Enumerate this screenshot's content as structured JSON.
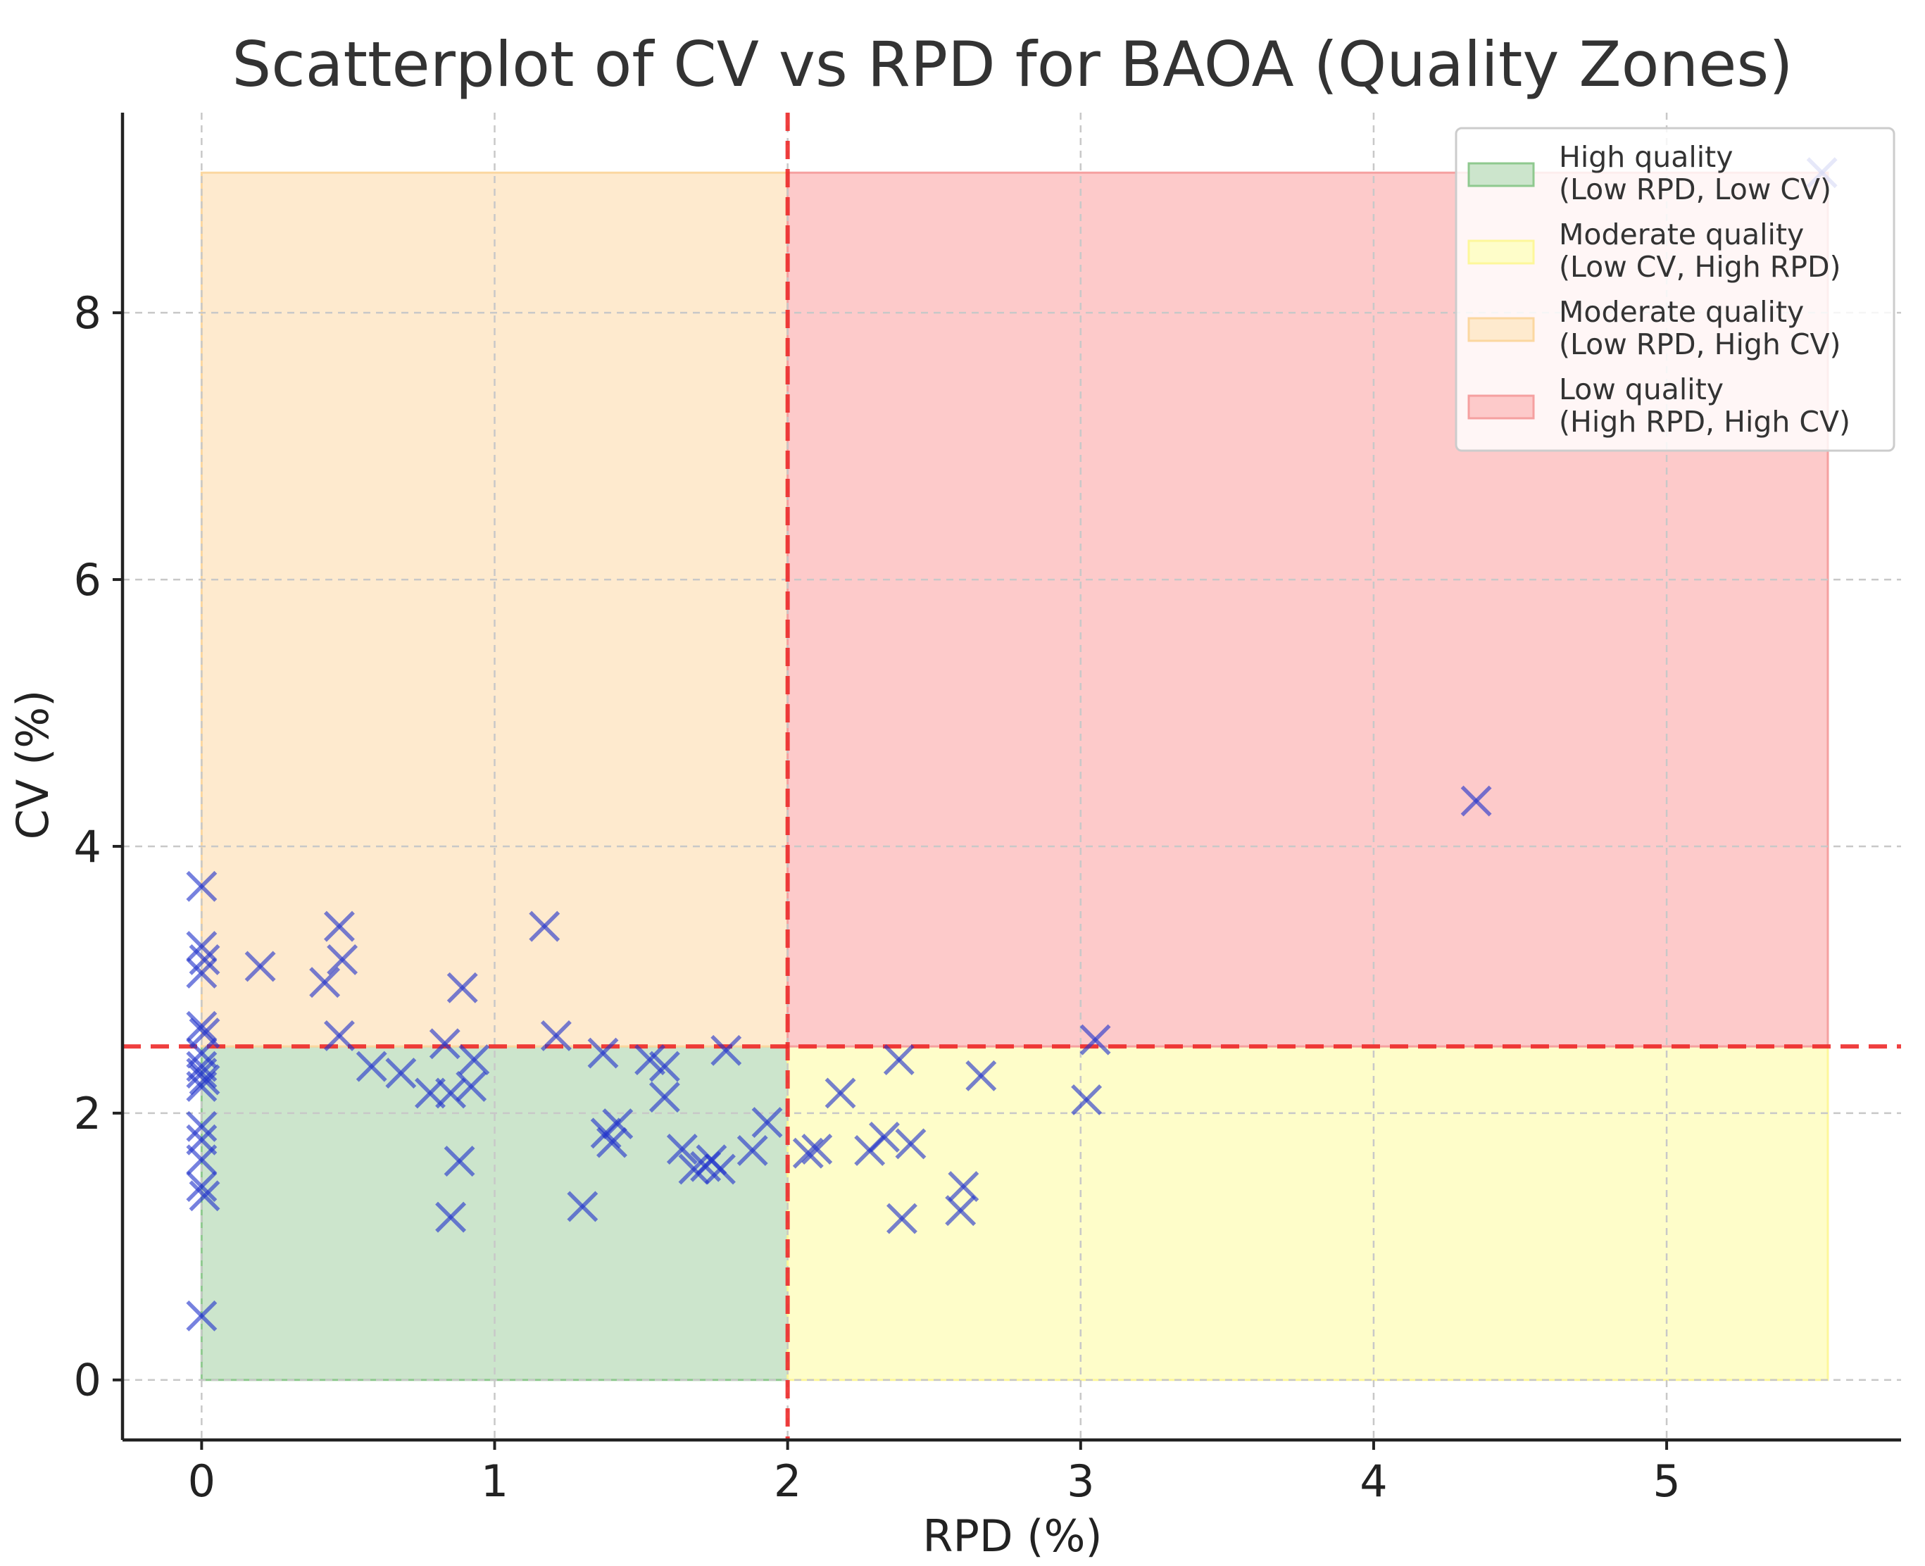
{
  "chart_data": {
    "type": "scatter",
    "title": "Scatterplot of CV vs RPD for BAOA (Quality Zones)",
    "xlabel": "RPD (%)",
    "ylabel": "CV (%)",
    "xlim": [
      -0.27,
      5.8
    ],
    "ylim": [
      -0.45,
      9.5
    ],
    "xticks": [
      0,
      1,
      2,
      3,
      4,
      5
    ],
    "yticks": [
      0,
      2,
      4,
      6,
      8
    ],
    "grid": true,
    "marker": "x",
    "marker_color": "#2233cc",
    "thresholds": {
      "rpd": 2,
      "cv": 2.5,
      "color": "#ee2b2b"
    },
    "zone_extent": {
      "x_max": 5.55,
      "y_max": 9.05
    },
    "zones": [
      {
        "name": "high",
        "label_line1": "High quality",
        "label_line2": "(Low RPD, Low CV)",
        "color": "#cce5cc",
        "border": "#8fc98f",
        "x0": 0,
        "x1": 2,
        "y0": 0,
        "y1": 2.5
      },
      {
        "name": "moderate-cv",
        "label_line1": "Moderate quality",
        "label_line2": "(Low CV, High RPD)",
        "color": "#fefdc9",
        "border": "#fdf79a",
        "x0": 2,
        "x1": 5.55,
        "y0": 0,
        "y1": 2.5
      },
      {
        "name": "moderate-rpd",
        "label_line1": "Moderate quality",
        "label_line2": "(Low RPD, High CV)",
        "color": "#feeace",
        "border": "#fbd7a0",
        "x0": 0,
        "x1": 2,
        "y0": 2.5,
        "y1": 9.05
      },
      {
        "name": "low",
        "label_line1": "Low quality",
        "label_line2": "(High RPD, High CV)",
        "color": "#fdcaca",
        "border": "#f5a0a0",
        "x0": 2,
        "x1": 5.55,
        "y0": 2.5,
        "y1": 9.05
      }
    ],
    "legend_position": "top-right",
    "points": [
      {
        "x": 0,
        "y": 3.7
      },
      {
        "x": 0,
        "y": 3.25
      },
      {
        "x": 0.01,
        "y": 3.15
      },
      {
        "x": 0,
        "y": 3.05
      },
      {
        "x": 0,
        "y": 2.65
      },
      {
        "x": 0.01,
        "y": 2.6
      },
      {
        "x": 0,
        "y": 2.45
      },
      {
        "x": 0,
        "y": 2.35
      },
      {
        "x": 0,
        "y": 2.3
      },
      {
        "x": 0.01,
        "y": 2.25
      },
      {
        "x": 0,
        "y": 2.2
      },
      {
        "x": 0,
        "y": 1.9
      },
      {
        "x": 0,
        "y": 1.8
      },
      {
        "x": 0,
        "y": 1.65
      },
      {
        "x": 0,
        "y": 1.45
      },
      {
        "x": 0.01,
        "y": 1.38
      },
      {
        "x": 0,
        "y": 0.48
      },
      {
        "x": 0.2,
        "y": 3.1
      },
      {
        "x": 0.42,
        "y": 2.98
      },
      {
        "x": 0.47,
        "y": 3.4
      },
      {
        "x": 0.48,
        "y": 3.15
      },
      {
        "x": 0.47,
        "y": 2.58
      },
      {
        "x": 0.58,
        "y": 2.35
      },
      {
        "x": 0.68,
        "y": 2.3
      },
      {
        "x": 0.78,
        "y": 2.15
      },
      {
        "x": 0.83,
        "y": 2.52
      },
      {
        "x": 0.85,
        "y": 2.15
      },
      {
        "x": 0.89,
        "y": 2.94
      },
      {
        "x": 0.92,
        "y": 2.2
      },
      {
        "x": 0.93,
        "y": 2.4
      },
      {
        "x": 0.88,
        "y": 1.64
      },
      {
        "x": 0.85,
        "y": 1.22
      },
      {
        "x": 1.17,
        "y": 3.4
      },
      {
        "x": 1.21,
        "y": 2.58
      },
      {
        "x": 1.3,
        "y": 1.3
      },
      {
        "x": 1.37,
        "y": 2.45
      },
      {
        "x": 1.38,
        "y": 1.85
      },
      {
        "x": 1.4,
        "y": 1.78
      },
      {
        "x": 1.42,
        "y": 1.92
      },
      {
        "x": 1.53,
        "y": 2.4
      },
      {
        "x": 1.58,
        "y": 2.35
      },
      {
        "x": 1.58,
        "y": 2.12
      },
      {
        "x": 1.64,
        "y": 1.73
      },
      {
        "x": 1.68,
        "y": 1.58
      },
      {
        "x": 1.72,
        "y": 1.6
      },
      {
        "x": 1.74,
        "y": 1.65
      },
      {
        "x": 1.77,
        "y": 1.58
      },
      {
        "x": 1.79,
        "y": 2.47
      },
      {
        "x": 1.88,
        "y": 1.72
      },
      {
        "x": 1.93,
        "y": 1.93
      },
      {
        "x": 2.07,
        "y": 1.7
      },
      {
        "x": 2.1,
        "y": 1.73
      },
      {
        "x": 2.18,
        "y": 2.15
      },
      {
        "x": 2.28,
        "y": 1.72
      },
      {
        "x": 2.33,
        "y": 1.82
      },
      {
        "x": 2.38,
        "y": 2.4
      },
      {
        "x": 2.42,
        "y": 1.77
      },
      {
        "x": 2.39,
        "y": 1.21
      },
      {
        "x": 2.59,
        "y": 1.27
      },
      {
        "x": 2.6,
        "y": 1.45
      },
      {
        "x": 2.66,
        "y": 2.28
      },
      {
        "x": 3.02,
        "y": 2.1
      },
      {
        "x": 3.05,
        "y": 2.55
      },
      {
        "x": 4.35,
        "y": 4.34
      },
      {
        "x": 5.53,
        "y": 9.05
      }
    ]
  }
}
